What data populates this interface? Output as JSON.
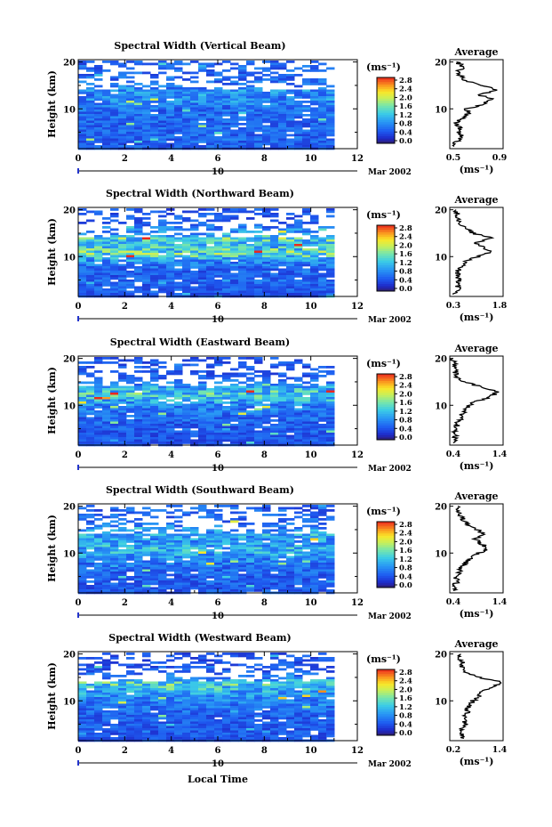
{
  "figure": {
    "xlabel": "Local Time",
    "ylabel": "Height (km)",
    "date_label": "Mar 2002",
    "day_marker": "10",
    "cbar_unit": "(ms⁻¹)",
    "avg_title": "Average",
    "avg_unit": "(ms⁻¹)"
  },
  "chart_data": [
    {
      "type": "heatmap",
      "title": "Spectral Width (Vertical Beam)",
      "xlabel": "",
      "ylabel": "Height (km)",
      "x_ticks": [
        0,
        2,
        4,
        6,
        8,
        10,
        12
      ],
      "xlim": [
        0,
        12
      ],
      "y_ticks": [
        10,
        20
      ],
      "ylim": [
        1.5,
        20.5
      ],
      "data_xlim": [
        0,
        10.8
      ],
      "colorbar": {
        "ticks": [
          "2.8",
          "2.4",
          "2.0",
          "1.6",
          "1.2",
          "0.8",
          "0.4",
          "0.0"
        ],
        "range": [
          0,
          2.8
        ]
      },
      "average": {
        "xlim": [
          0.5,
          0.9
        ],
        "x_ticks": [
          "0.5",
          "0.9"
        ],
        "y_ticks": [
          10,
          20
        ],
        "heights": [
          2,
          3,
          4,
          5,
          6,
          7,
          8,
          9,
          10,
          11,
          12,
          13,
          14,
          15,
          16,
          17,
          18,
          19,
          20
        ],
        "values": [
          0.52,
          0.55,
          0.6,
          0.56,
          0.57,
          0.55,
          0.6,
          0.64,
          0.63,
          0.75,
          0.82,
          0.72,
          0.86,
          0.73,
          0.62,
          0.58,
          0.56,
          0.6,
          0.55
        ]
      }
    },
    {
      "type": "heatmap",
      "title": "Spectral Width (Northward Beam)",
      "xlabel": "",
      "ylabel": "Height (km)",
      "x_ticks": [
        0,
        2,
        4,
        6,
        8,
        10,
        12
      ],
      "xlim": [
        0,
        12
      ],
      "y_ticks": [
        10,
        20
      ],
      "ylim": [
        1.5,
        20.5
      ],
      "data_xlim": [
        0,
        10.8
      ],
      "colorbar": {
        "ticks": [
          "2.8",
          "2.4",
          "2.0",
          "1.6",
          "1.2",
          "0.8",
          "0.4",
          "0.0"
        ],
        "range": [
          0,
          2.8
        ]
      },
      "average": {
        "xlim": [
          0.3,
          1.8
        ],
        "x_ticks": [
          "0.3",
          "1.8"
        ],
        "y_ticks": [
          10,
          20
        ],
        "heights": [
          2,
          3,
          4,
          5,
          6,
          7,
          8,
          9,
          10,
          11,
          12,
          13,
          14,
          15,
          16,
          17,
          18,
          19,
          20
        ],
        "values": [
          0.45,
          0.55,
          0.5,
          0.6,
          0.5,
          0.55,
          0.62,
          0.75,
          1.1,
          1.5,
          1.25,
          1.05,
          1.45,
          0.95,
          0.8,
          0.6,
          0.55,
          0.5,
          0.48
        ]
      }
    },
    {
      "type": "heatmap",
      "title": "Spectral Width (Eastward Beam)",
      "xlabel": "",
      "ylabel": "Height (km)",
      "x_ticks": [
        0,
        2,
        4,
        6,
        8,
        10,
        12
      ],
      "xlim": [
        0,
        12
      ],
      "y_ticks": [
        10,
        20
      ],
      "ylim": [
        1.5,
        20.5
      ],
      "data_xlim": [
        0,
        10.8
      ],
      "colorbar": {
        "ticks": [
          "2.8",
          "2.4",
          "2.0",
          "1.6",
          "1.2",
          "0.8",
          "0.4",
          "0.0"
        ],
        "range": [
          0,
          2.8
        ]
      },
      "average": {
        "xlim": [
          0.4,
          1.4
        ],
        "x_ticks": [
          "0.4",
          "1.4"
        ],
        "y_ticks": [
          10,
          20
        ],
        "heights": [
          2,
          3,
          4,
          5,
          6,
          7,
          8,
          9,
          10,
          11,
          12,
          13,
          14,
          15,
          16,
          17,
          18,
          19,
          20
        ],
        "values": [
          0.45,
          0.5,
          0.48,
          0.55,
          0.52,
          0.6,
          0.62,
          0.68,
          0.75,
          0.95,
          1.2,
          1.3,
          0.95,
          0.7,
          0.55,
          0.5,
          0.5,
          0.48,
          0.46
        ]
      }
    },
    {
      "type": "heatmap",
      "title": "Spectral Width (Southward Beam)",
      "xlabel": "",
      "ylabel": "Height (km)",
      "x_ticks": [
        0,
        2,
        4,
        6,
        8,
        10,
        12
      ],
      "xlim": [
        0,
        12
      ],
      "y_ticks": [
        10,
        20
      ],
      "ylim": [
        1.5,
        20.5
      ],
      "data_xlim": [
        0,
        10.8
      ],
      "colorbar": {
        "ticks": [
          "2.8",
          "2.4",
          "2.0",
          "1.6",
          "1.2",
          "0.8",
          "0.4",
          "0.0"
        ],
        "range": [
          0,
          2.8
        ]
      },
      "average": {
        "xlim": [
          0.4,
          1.4
        ],
        "x_ticks": [
          "0.4",
          "1.4"
        ],
        "y_ticks": [
          10,
          20
        ],
        "heights": [
          2,
          3,
          4,
          5,
          6,
          7,
          8,
          9,
          10,
          11,
          12,
          13,
          14,
          15,
          16,
          17,
          18,
          19,
          20
        ],
        "values": [
          0.5,
          0.48,
          0.55,
          0.52,
          0.58,
          0.62,
          0.7,
          0.78,
          0.95,
          1.1,
          1.0,
          0.85,
          1.05,
          0.9,
          0.75,
          0.65,
          0.6,
          0.58,
          0.55
        ]
      }
    },
    {
      "type": "heatmap",
      "title": "Spectral Width (Westward Beam)",
      "xlabel": "Local Time",
      "ylabel": "Height (km)",
      "x_ticks": [
        0,
        2,
        4,
        6,
        8,
        10,
        12
      ],
      "xlim": [
        0,
        12
      ],
      "y_ticks": [
        10,
        20
      ],
      "ylim": [
        1.5,
        20.5
      ],
      "data_xlim": [
        0,
        10.8
      ],
      "colorbar": {
        "ticks": [
          "2.8",
          "2.4",
          "2.0",
          "1.6",
          "1.2",
          "0.8",
          "0.4",
          "0.0"
        ],
        "range": [
          0,
          2.8
        ]
      },
      "average": {
        "xlim": [
          0.2,
          1.4
        ],
        "x_ticks": [
          "0.2",
          "1.4"
        ],
        "y_ticks": [
          10,
          20
        ],
        "heights": [
          2,
          3,
          4,
          5,
          6,
          7,
          8,
          9,
          10,
          11,
          12,
          13,
          14,
          15,
          16,
          17,
          18,
          19,
          20
        ],
        "values": [
          0.45,
          0.5,
          0.48,
          0.55,
          0.52,
          0.55,
          0.6,
          0.65,
          0.72,
          0.85,
          0.95,
          1.2,
          1.35,
          0.85,
          0.6,
          0.5,
          0.48,
          0.45,
          0.45
        ]
      }
    }
  ]
}
